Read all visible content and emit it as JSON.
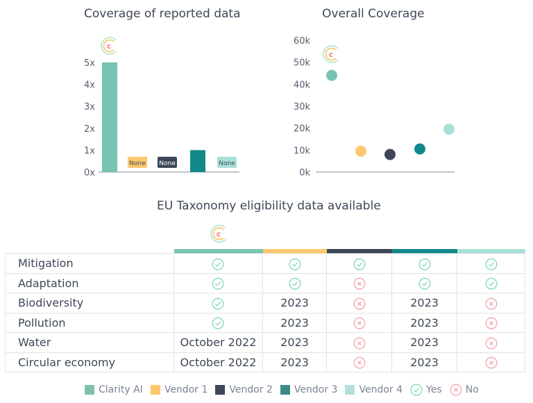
{
  "colors": {
    "clarity": "#76c4b2",
    "vendor1": "#fdc86e",
    "vendor2": "#3e4758",
    "vendor3": "#11898a",
    "vendor4": "#a9e0d9",
    "yes": "#7fd8b8",
    "no": "#f4a3ad"
  },
  "chart_data": [
    {
      "type": "bar",
      "title": "Coverage of reported data",
      "categories": [
        "Clarity AI",
        "Vendor 1",
        "Vendor 2",
        "Vendor 3",
        "Vendor 4"
      ],
      "values": [
        5,
        null,
        null,
        1,
        null
      ],
      "missing_label": "None",
      "ylim": [
        0,
        5
      ],
      "ytick_labels": [
        "0x",
        "1x",
        "2x",
        "3x",
        "4x",
        "5x"
      ],
      "grid": false
    },
    {
      "type": "scatter",
      "title": "Overall Coverage",
      "categories": [
        "Clarity AI",
        "Vendor 1",
        "Vendor 2",
        "Vendor 3",
        "Vendor 4"
      ],
      "values": [
        44000,
        9500,
        8000,
        10500,
        19500
      ],
      "ylim": [
        0,
        60000
      ],
      "ytick_labels": [
        "0k",
        "10k",
        "20k",
        "30k",
        "40k",
        "50k",
        "60k"
      ],
      "grid": false
    }
  ],
  "table": {
    "title": "EU Taxonomy eligibility data available",
    "rows": [
      {
        "label": "Mitigation",
        "cells": [
          "yes",
          "yes",
          "yes",
          "yes",
          "yes"
        ]
      },
      {
        "label": "Adaptation",
        "cells": [
          "yes",
          "yes",
          "no",
          "yes",
          "yes"
        ]
      },
      {
        "label": "Biodiversity",
        "cells": [
          "yes",
          "2023",
          "no",
          "2023",
          "no"
        ]
      },
      {
        "label": "Pollution",
        "cells": [
          "yes",
          "2023",
          "no",
          "2023",
          "no"
        ]
      },
      {
        "label": "Water",
        "cells": [
          "October 2022",
          "2023",
          "no",
          "2023",
          "no"
        ]
      },
      {
        "label": "Circular economy",
        "cells": [
          "October 2022",
          "2023",
          "no",
          "2023",
          "no"
        ]
      }
    ]
  },
  "legend": [
    {
      "label": "Clarity AI",
      "color": "#7fbfad"
    },
    {
      "label": "Vendor 1",
      "color": "#fdc86e"
    },
    {
      "label": "Vendor 2",
      "color": "#3e4758"
    },
    {
      "label": "Vendor 3",
      "color": "#3a8a8a"
    },
    {
      "label": "Vendor 4",
      "color": "#b3e0da"
    }
  ],
  "legend_yes": "Yes",
  "legend_no": "No"
}
